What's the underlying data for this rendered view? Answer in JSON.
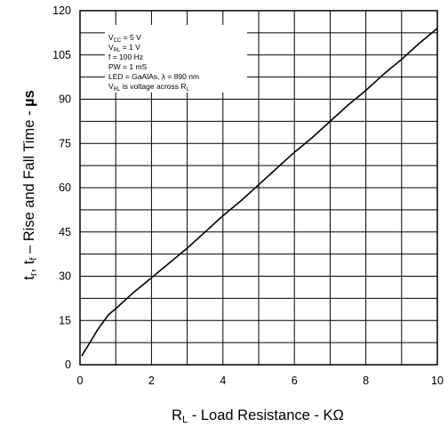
{
  "chart_data": {
    "type": "line",
    "xlim": [
      0,
      10
    ],
    "ylim": [
      0,
      120
    ],
    "x_ticks": [
      0,
      2,
      4,
      6,
      8,
      10
    ],
    "y_ticks": [
      0,
      15,
      30,
      45,
      60,
      75,
      90,
      105,
      120
    ],
    "x_tick_labels": [
      "0",
      "2",
      "4",
      "6",
      "8",
      "10"
    ],
    "y_tick_labels": [
      "0",
      "15",
      "30",
      "45",
      "60",
      "75",
      "90",
      "105",
      "120"
    ],
    "grid": true,
    "x_grid_step": 1,
    "y_grid_step": 7.5,
    "series": [
      {
        "x": [
          0.05,
          0.3,
          0.5,
          0.8,
          1.0,
          1.5,
          2.0,
          2.5,
          3.0,
          3.5,
          4.0,
          4.5,
          5.0,
          5.5,
          6.0,
          6.5,
          7.0,
          7.5,
          8.0,
          8.5,
          9.0,
          9.5,
          10.0
        ],
        "y": [
          3,
          8,
          12,
          17,
          19,
          24.5,
          29.5,
          34.5,
          39.5,
          45,
          50.5,
          55.5,
          61,
          66.5,
          72,
          77,
          82.5,
          88,
          93,
          98.5,
          103.5,
          109,
          114
        ]
      }
    ]
  },
  "axes": {
    "x_label_main": "R",
    "x_label_sub": "L",
    "x_label_rest": " - Load Resistance - KΩ",
    "y_label_t1": "t",
    "y_label_r": "r",
    "y_label_mid": ", t",
    "y_label_f": "f",
    "y_label_rest": " – Rise and Fall Time - ",
    "y_label_unit": "µs"
  },
  "conditions": {
    "line1_main": "V",
    "line1_sub": "CC",
    "line1_rest": " = 5 V",
    "line2_main": "V",
    "line2_sub": "RL",
    "line2_rest": " = 1 V",
    "line3": "f = 100 Hz",
    "line4": "PW = 1 mS",
    "line5": "LED = GaAlAs, λ = 890 nm",
    "line6_main": "V",
    "line6_sub": "RL",
    "line6_rest": " is voltage across R",
    "line6_end_sub": "L"
  },
  "colors": {
    "line": "#000000",
    "grid": "#000000",
    "background": "#ffffff"
  }
}
